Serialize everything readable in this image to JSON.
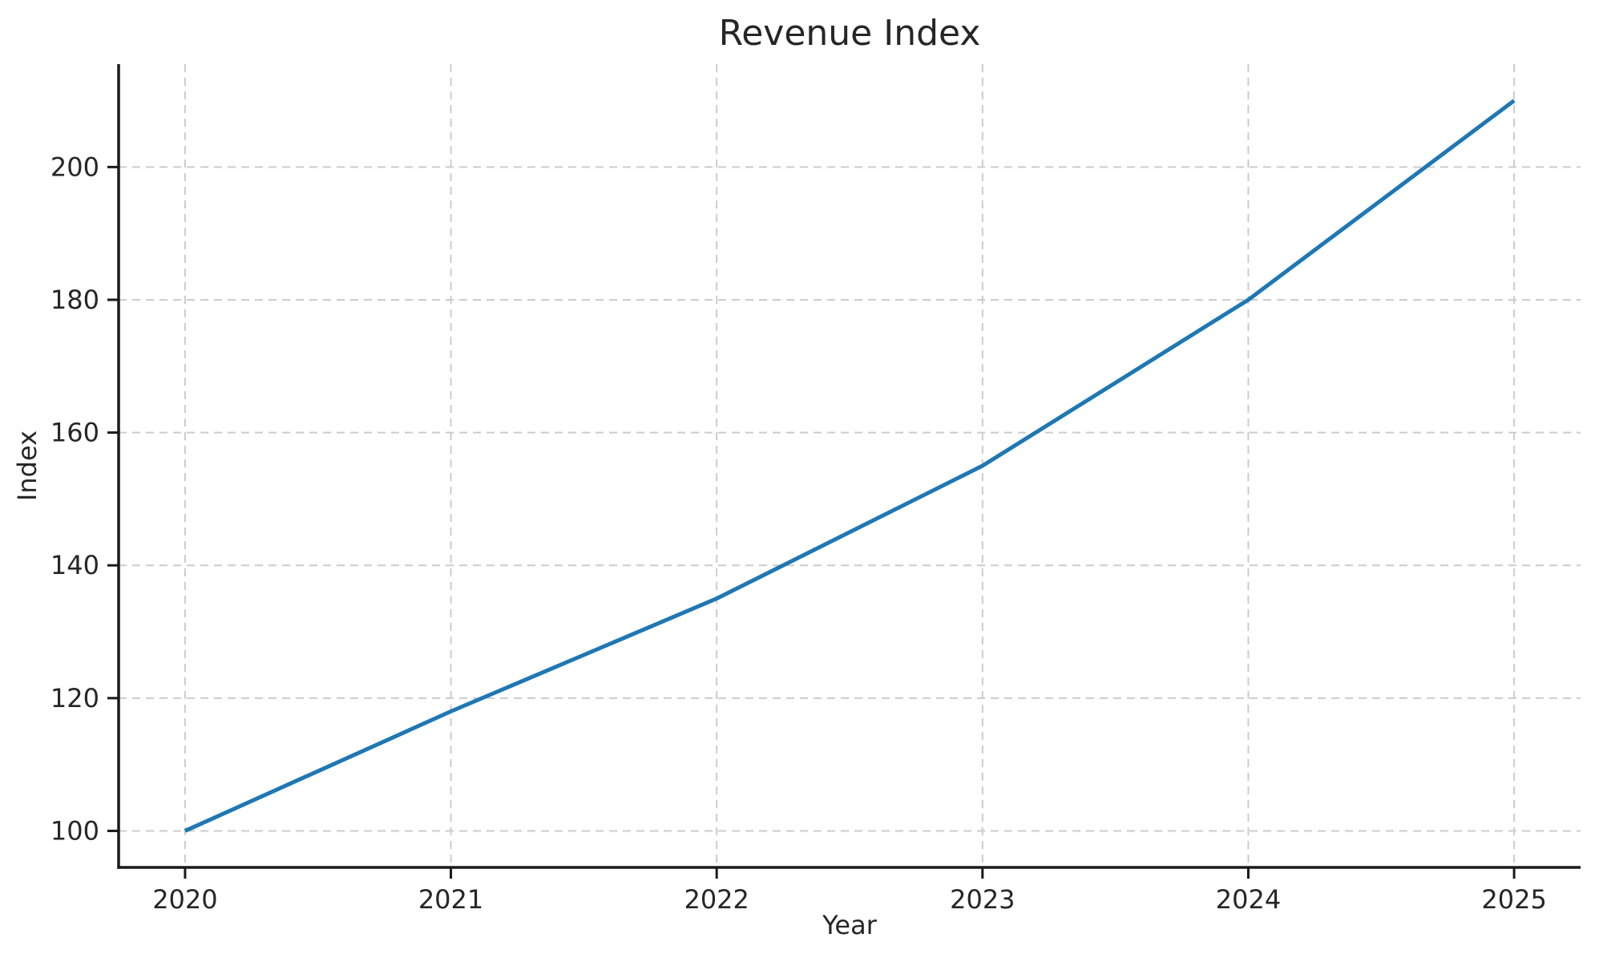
{
  "chart_data": {
    "type": "line",
    "title": "Revenue Index",
    "xlabel": "Year",
    "ylabel": "Index",
    "x": [
      2020,
      2021,
      2022,
      2023,
      2024,
      2025
    ],
    "series": [
      {
        "name": "Revenue Index",
        "values": [
          100,
          118,
          135,
          155,
          180,
          210
        ]
      }
    ],
    "xticks": [
      2020,
      2021,
      2022,
      2023,
      2024,
      2025
    ],
    "yticks": [
      100,
      120,
      140,
      160,
      180,
      200
    ],
    "xlim": [
      2019.75,
      2025.25
    ],
    "ylim": [
      94.5,
      215.5
    ],
    "grid": true,
    "grid_style": "dashed",
    "legend": false,
    "colors": {
      "line": "#1f77b4",
      "grid": "#cccccc",
      "spine": "#1a1a1a",
      "tick": "#1a1a1a",
      "text": "#262626"
    }
  }
}
